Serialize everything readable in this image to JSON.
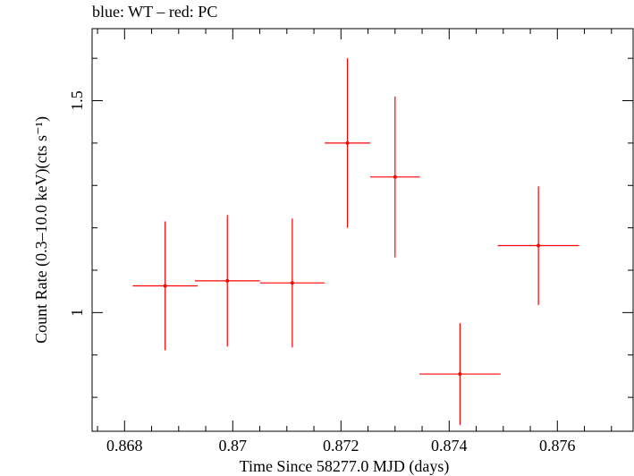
{
  "chart_data": {
    "type": "scatter",
    "title": "blue: WT – red: PC",
    "xlabel": "Time Since 58277.0 MJD (days)",
    "ylabel": "Count Rate (0.3–10.0 keV)(cts s⁻¹)",
    "xlim": [
      0.8674,
      0.8774
    ],
    "ylim": [
      0.72,
      1.67
    ],
    "xticks": [
      0.868,
      0.87,
      0.872,
      0.874,
      0.876
    ],
    "xtick_labels": [
      "0.868",
      "0.87",
      "0.872",
      "0.874",
      "0.876"
    ],
    "yticks": [
      1.0,
      1.5
    ],
    "ytick_labels": [
      "1",
      "1.5"
    ],
    "grid": false,
    "series": [
      {
        "name": "PC",
        "color": "#ff0000",
        "points": [
          {
            "x": 0.86875,
            "xerr": 0.0006,
            "y": 1.063,
            "yerr": 0.152
          },
          {
            "x": 0.8699,
            "xerr": 0.0006,
            "y": 1.075,
            "yerr": 0.155
          },
          {
            "x": 0.8711,
            "xerr": 0.0006,
            "y": 1.07,
            "yerr": 0.152
          },
          {
            "x": 0.87212,
            "xerr": 0.00042,
            "y": 1.4,
            "yerr": 0.2
          },
          {
            "x": 0.873,
            "xerr": 0.00046,
            "y": 1.32,
            "yerr": 0.19
          },
          {
            "x": 0.8742,
            "xerr": 0.00075,
            "y": 0.855,
            "yerr": 0.12
          },
          {
            "x": 0.87565,
            "xerr": 0.00075,
            "y": 1.158,
            "yerr": 0.14
          }
        ]
      }
    ]
  }
}
